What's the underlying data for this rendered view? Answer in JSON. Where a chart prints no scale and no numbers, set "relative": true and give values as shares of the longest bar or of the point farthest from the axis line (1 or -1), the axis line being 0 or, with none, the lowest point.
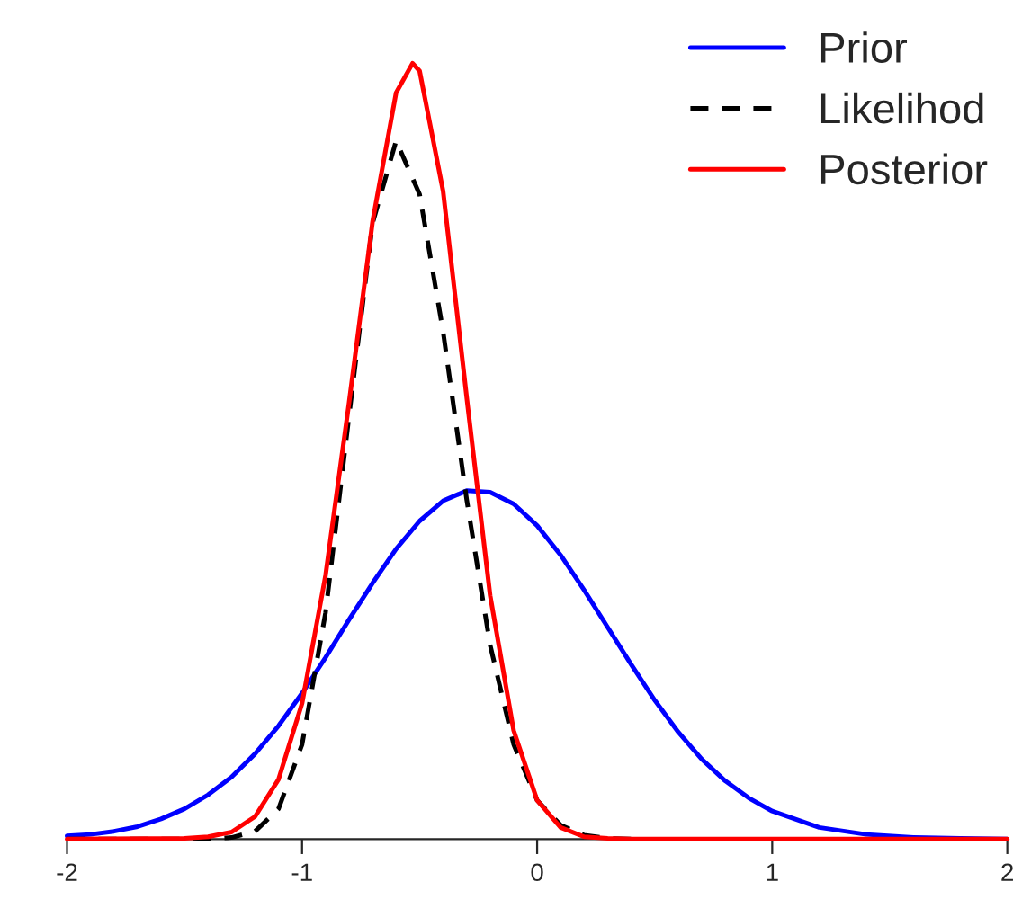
{
  "chart_data": {
    "type": "line",
    "relative": true,
    "xlim": [
      -2,
      2
    ],
    "xticks": [
      -2,
      -1,
      0,
      1,
      2
    ],
    "legend": "top right",
    "grid": false,
    "marker": "none",
    "tick_labels": "x",
    "series": [
      {
        "name": "Prior",
        "color": "#0000ff",
        "line_style": "solid",
        "x": [
          -2,
          -1.9,
          -1.8,
          -1.7,
          -1.6,
          -1.5,
          -1.4,
          -1.3,
          -1.2,
          -1.1,
          -1.0,
          -0.9,
          -0.8,
          -0.7,
          -0.6,
          -0.5,
          -0.4,
          -0.3,
          -0.2,
          -0.1,
          0,
          0.1,
          0.2,
          0.3,
          0.4,
          0.5,
          0.6,
          0.7,
          0.8,
          0.9,
          1.0,
          1.2,
          1.4,
          1.6,
          1.8,
          2.0
        ],
        "values": [
          0.004,
          0.006,
          0.01,
          0.016,
          0.026,
          0.039,
          0.057,
          0.08,
          0.11,
          0.146,
          0.188,
          0.234,
          0.283,
          0.33,
          0.374,
          0.41,
          0.436,
          0.449,
          0.447,
          0.432,
          0.404,
          0.366,
          0.321,
          0.273,
          0.225,
          0.179,
          0.138,
          0.103,
          0.075,
          0.053,
          0.036,
          0.015,
          0.006,
          0.002,
          0.001,
          0.0
        ]
      },
      {
        "name": "Likelihod",
        "color": "#000000",
        "line_style": "dashed",
        "x": [
          -2,
          -1.6,
          -1.4,
          -1.3,
          -1.2,
          -1.1,
          -1.0,
          -0.9,
          -0.8,
          -0.7,
          -0.6,
          -0.5,
          -0.4,
          -0.3,
          -0.2,
          -0.1,
          0,
          0.1,
          0.2,
          0.3,
          0.4
        ],
        "values": [
          0,
          0,
          0.0,
          0.002,
          0.01,
          0.039,
          0.122,
          0.292,
          0.546,
          0.794,
          0.9,
          0.831,
          0.654,
          0.438,
          0.25,
          0.122,
          0.05,
          0.018,
          0.005,
          0.001,
          0
        ]
      },
      {
        "name": "Posterior",
        "color": "#ff0000",
        "line_style": "solid",
        "x": [
          -2,
          -1.5,
          -1.4,
          -1.3,
          -1.2,
          -1.1,
          -1.0,
          -0.9,
          -0.8,
          -0.7,
          -0.6,
          -0.53,
          -0.5,
          -0.4,
          -0.3,
          -0.2,
          -0.1,
          0,
          0.1,
          0.2,
          0.3,
          0.4,
          1.0,
          2.0
        ],
        "values": [
          0,
          0.001,
          0.003,
          0.009,
          0.029,
          0.077,
          0.175,
          0.34,
          0.563,
          0.796,
          0.962,
          1,
          0.99,
          0.835,
          0.57,
          0.314,
          0.14,
          0.05,
          0.015,
          0.003,
          0.001,
          0,
          0,
          0
        ]
      }
    ]
  }
}
